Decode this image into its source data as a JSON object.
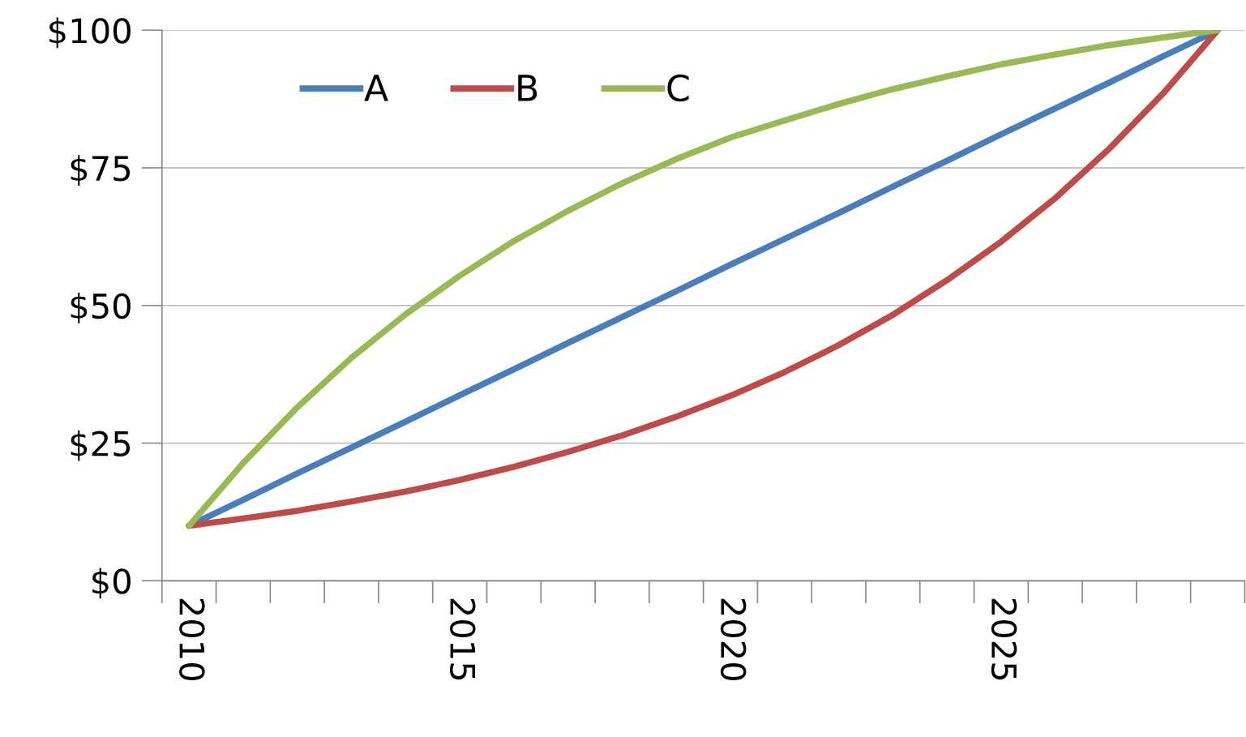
{
  "chart_data": {
    "type": "line",
    "categories": [
      "2010",
      null,
      null,
      null,
      null,
      "2015",
      null,
      null,
      null,
      null,
      "2020",
      null,
      null,
      null,
      null,
      "2025",
      null,
      null,
      null,
      null
    ],
    "series": [
      {
        "name": "A",
        "color": "#4a7ebb",
        "values": [
          10,
          14.7,
          19.5,
          24.2,
          28.9,
          33.7,
          38.4,
          43.2,
          47.9,
          52.6,
          57.4,
          62.1,
          66.8,
          71.6,
          76.3,
          81.1,
          85.8,
          90.5,
          95.3,
          100
        ]
      },
      {
        "name": "B",
        "color": "#be4b48",
        "values": [
          10,
          11.3,
          12.7,
          14.4,
          16.2,
          18.3,
          20.7,
          23.4,
          26.4,
          29.8,
          33.6,
          37.9,
          42.8,
          48.3,
          54.6,
          61.6,
          69.5,
          78.5,
          88.6,
          100
        ]
      },
      {
        "name": "C",
        "color": "#98b954",
        "values": [
          10,
          21.4,
          31.5,
          40.5,
          48.4,
          55.4,
          61.7,
          67.2,
          72.2,
          76.6,
          80.5,
          83.6,
          86.6,
          89.3,
          91.6,
          93.8,
          95.6,
          97.3,
          98.7,
          100
        ]
      }
    ],
    "ylim": [
      0,
      100
    ],
    "yticks": [
      {
        "value": 0,
        "label": "$0"
      },
      {
        "value": 25,
        "label": "$25"
      },
      {
        "value": 50,
        "label": "$50"
      },
      {
        "value": 75,
        "label": "$75"
      },
      {
        "value": 100,
        "label": "$100"
      }
    ],
    "grid": "y",
    "legend": "top left",
    "marker": "none",
    "line_style": "solid"
  }
}
